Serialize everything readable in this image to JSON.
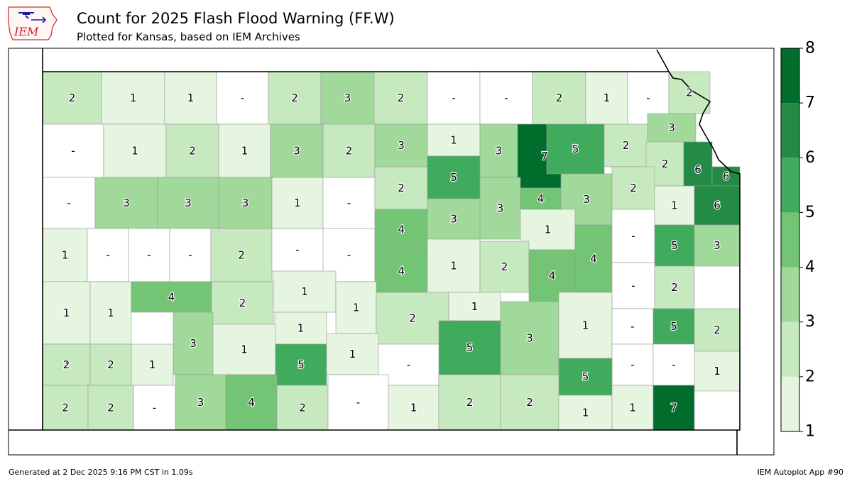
{
  "header": {
    "title": "Count for 2025 Flash Flood Warning (FF.W)",
    "subtitle": "Plotted for Kansas, based on IEM Archives",
    "logo_text": "IEM"
  },
  "footer": {
    "generated": "Generated at 2 Dec 2025 9:16 PM CST in 1.09s",
    "app": "IEM Autoplot App #90"
  },
  "colors": {
    "bins": [
      "#e5f5e0",
      "#c7e9c0",
      "#a1d99b",
      "#74c476",
      "#41ab5d",
      "#238b45",
      "#006d2c"
    ],
    "none": "#ffffff"
  },
  "legend": {
    "ticks": [
      "1",
      "2",
      "3",
      "4",
      "5",
      "6",
      "7",
      "8"
    ]
  },
  "counties": [
    {
      "v": "2"
    },
    {
      "v": "1"
    },
    {
      "v": "1"
    },
    {
      "v": "-"
    },
    {
      "v": "2"
    },
    {
      "v": "3"
    },
    {
      "v": "2"
    },
    {
      "v": "-"
    },
    {
      "v": "-"
    },
    {
      "v": "2"
    },
    {
      "v": "1"
    },
    {
      "v": "-"
    },
    {
      "v": "2"
    },
    {
      "v": "-"
    },
    {
      "v": "1"
    },
    {
      "v": "2"
    },
    {
      "v": "1"
    },
    {
      "v": "3"
    },
    {
      "v": "2"
    },
    {
      "v": "3"
    },
    {
      "v": "1"
    },
    {
      "v": "3"
    },
    {
      "v": "7"
    },
    {
      "v": "5"
    },
    {
      "v": "2"
    },
    {
      "v": "3"
    },
    {
      "v": "2"
    },
    {
      "v": "6"
    },
    {
      "v": "6"
    },
    {
      "v": "-"
    },
    {
      "v": "3"
    },
    {
      "v": "3"
    },
    {
      "v": "3"
    },
    {
      "v": "1"
    },
    {
      "v": "-"
    },
    {
      "v": "2"
    },
    {
      "v": "5"
    },
    {
      "v": "3"
    },
    {
      "v": "4"
    },
    {
      "v": "3"
    },
    {
      "v": "2"
    },
    {
      "v": "1"
    },
    {
      "v": "6"
    },
    {
      "v": "1"
    },
    {
      "v": "-"
    },
    {
      "v": "-"
    },
    {
      "v": "-"
    },
    {
      "v": "2"
    },
    {
      "v": "-"
    },
    {
      "v": "-"
    },
    {
      "v": "4"
    },
    {
      "v": "3"
    },
    {
      "v": "1"
    },
    {
      "v": "4"
    },
    {
      "v": "-"
    },
    {
      "v": "5"
    },
    {
      "v": "3"
    },
    {
      "v": "4"
    },
    {
      "v": "1"
    },
    {
      "v": "2"
    },
    {
      "v": "4"
    },
    {
      "v": "-"
    },
    {
      "v": "1"
    },
    {
      "v": "1"
    },
    {
      "v": "4"
    },
    {
      "v": "2"
    },
    {
      "v": "1"
    },
    {
      "v": "1"
    },
    {
      "v": "1"
    },
    {
      "v": "2"
    },
    {
      "v": "1"
    },
    {
      "v": "2"
    },
    {
      "v": "1"
    },
    {
      "v": "-"
    },
    {
      "v": "3"
    },
    {
      "v": "1"
    },
    {
      "v": "5"
    },
    {
      "v": "5"
    },
    {
      "v": "3"
    },
    {
      "v": "1"
    },
    {
      "v": "-"
    },
    {
      "v": "5"
    },
    {
      "v": "2"
    },
    {
      "v": "2"
    },
    {
      "v": "2"
    },
    {
      "v": "1"
    },
    {
      "v": "1"
    },
    {
      "v": "-"
    },
    {
      "v": "-"
    },
    {
      "v": "-"
    },
    {
      "v": "5"
    },
    {
      "v": "1"
    },
    {
      "v": "2"
    },
    {
      "v": "2"
    },
    {
      "v": "-"
    },
    {
      "v": "3"
    },
    {
      "v": "4"
    },
    {
      "v": "2"
    },
    {
      "v": "-"
    },
    {
      "v": "1"
    },
    {
      "v": "2"
    },
    {
      "v": "2"
    },
    {
      "v": "1"
    },
    {
      "v": "1"
    },
    {
      "v": "7"
    }
  ]
}
